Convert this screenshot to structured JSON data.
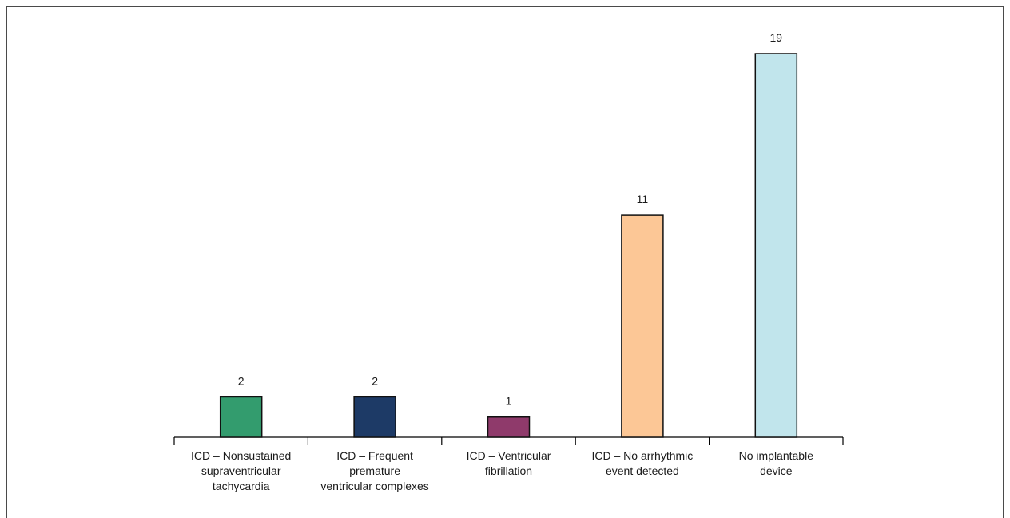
{
  "chart_data": {
    "type": "bar",
    "categories": [
      [
        "ICD – Nonsustained",
        "supraventricular",
        "tachycardia"
      ],
      [
        "ICD – Frequent",
        "premature",
        "ventricular complexes"
      ],
      [
        "ICD – Ventricular",
        "fibrillation"
      ],
      [
        "ICD – No arrhythmic",
        "event detected"
      ],
      [
        "No implantable",
        "device"
      ]
    ],
    "values": [
      2,
      2,
      1,
      11,
      19
    ],
    "colors": [
      "#339c6e",
      "#1d3a66",
      "#8f3a6b",
      "#fcc796",
      "#c1e5ec"
    ],
    "ylim": [
      0,
      20
    ],
    "grid": false,
    "show_value_labels": true
  }
}
